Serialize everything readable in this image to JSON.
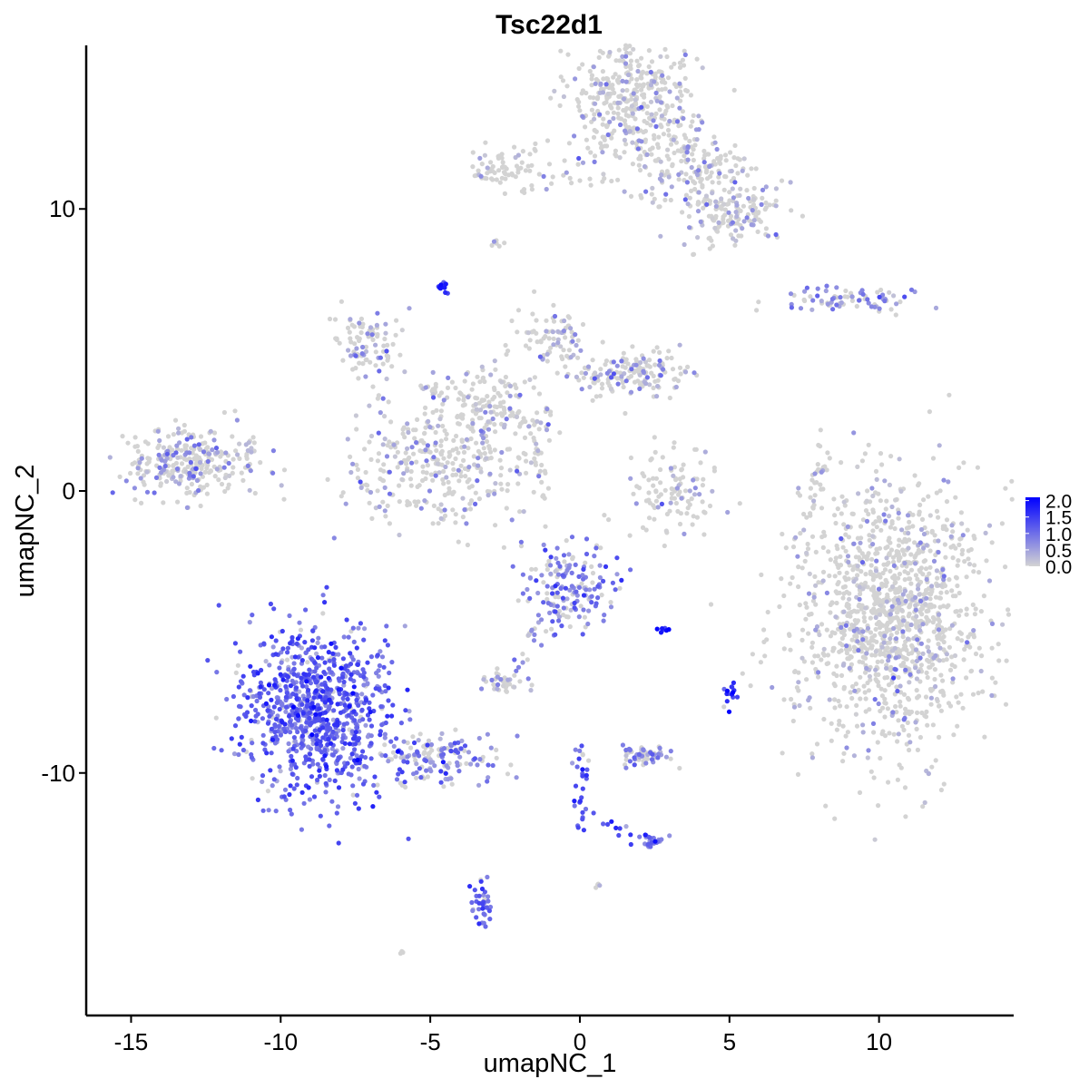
{
  "chart_data": {
    "type": "scatter",
    "title": "Tsc22d1",
    "xlabel": "umapNC_1",
    "ylabel": "umapNC_2",
    "xlim": [
      -16.5,
      14.5
    ],
    "ylim": [
      -18.6,
      15.8
    ],
    "xticks": [
      -15,
      -10,
      -5,
      0,
      5,
      10
    ],
    "yticks": [
      -10,
      0,
      10
    ],
    "xtick_labels": [
      "-15",
      "-10",
      "-5",
      "0",
      "5",
      "10"
    ],
    "ytick_labels": [
      "-10",
      "0",
      "10"
    ],
    "grid": false,
    "legend": {
      "placement": "right",
      "labels": [
        "2.0",
        "1.5",
        "1.0",
        "0.5",
        "0.0"
      ],
      "range": [
        0,
        2.1
      ]
    },
    "colors": {
      "low": "#d3d3d3",
      "high": "#0000ff",
      "axis": "#000000"
    },
    "clusters": [
      {
        "x": 10.4,
        "y": -4.4,
        "sx": 1.6,
        "sy": 2.4,
        "n": 1300,
        "expr": 0.08
      },
      {
        "x": 1.6,
        "y": 13.8,
        "sx": 1.0,
        "sy": 1.2,
        "n": 420,
        "expr": 0.12
      },
      {
        "x": 3.8,
        "y": 11.5,
        "sx": 1.0,
        "sy": 0.6,
        "n": 160,
        "expr": 0.2
      },
      {
        "x": 5.0,
        "y": 9.8,
        "sx": 0.9,
        "sy": 0.6,
        "n": 160,
        "expr": 0.22
      },
      {
        "x": -2.3,
        "y": 11.5,
        "sx": 0.6,
        "sy": 0.35,
        "n": 60,
        "expr": 0.05
      },
      {
        "x": 8.8,
        "y": 6.8,
        "sx": 1.2,
        "sy": 0.2,
        "n": 80,
        "expr": 0.45
      },
      {
        "x": -7.2,
        "y": 5.2,
        "sx": 0.6,
        "sy": 0.6,
        "n": 90,
        "expr": 0.2
      },
      {
        "x": -0.8,
        "y": 5.4,
        "sx": 0.6,
        "sy": 0.6,
        "n": 80,
        "expr": 0.2
      },
      {
        "x": 1.6,
        "y": 4.2,
        "sx": 0.9,
        "sy": 0.4,
        "n": 160,
        "expr": 0.25
      },
      {
        "x": -4.7,
        "y": 1.0,
        "sx": 1.5,
        "sy": 1.3,
        "n": 340,
        "expr": 0.18
      },
      {
        "x": -3.0,
        "y": 3.0,
        "sx": 0.9,
        "sy": 0.7,
        "n": 120,
        "expr": 0.1
      },
      {
        "x": -13.0,
        "y": 1.0,
        "sx": 1.1,
        "sy": 0.6,
        "n": 300,
        "expr": 0.3
      },
      {
        "x": 3.1,
        "y": -0.1,
        "sx": 0.8,
        "sy": 0.8,
        "n": 110,
        "expr": 0.05
      },
      {
        "x": -0.3,
        "y": -3.5,
        "sx": 0.8,
        "sy": 0.8,
        "n": 170,
        "expr": 0.6
      },
      {
        "x": -8.8,
        "y": -7.8,
        "sx": 1.2,
        "sy": 1.5,
        "n": 900,
        "expr": 0.9
      },
      {
        "x": -5.0,
        "y": -9.5,
        "sx": 1.2,
        "sy": 0.5,
        "n": 150,
        "expr": 0.55
      },
      {
        "x": -2.6,
        "y": -6.8,
        "sx": 0.35,
        "sy": 0.2,
        "n": 40,
        "expr": 0.3
      },
      {
        "x": 2.2,
        "y": -9.4,
        "sx": 0.4,
        "sy": 0.2,
        "n": 60,
        "expr": 0.5
      },
      {
        "x": 2.5,
        "y": -12.4,
        "sx": 0.2,
        "sy": 0.1,
        "n": 20,
        "expr": 0.8
      },
      {
        "x": -3.3,
        "y": -14.6,
        "sx": 0.2,
        "sy": 0.5,
        "n": 40,
        "expr": 0.9
      },
      {
        "x": 5.0,
        "y": -7.3,
        "sx": 0.1,
        "sy": 0.2,
        "n": 15,
        "expr": 1.6
      },
      {
        "x": 2.8,
        "y": -4.9,
        "sx": 0.1,
        "sy": 0.05,
        "n": 8,
        "expr": 1.7
      },
      {
        "x": -4.6,
        "y": 7.3,
        "sx": 0.1,
        "sy": 0.12,
        "n": 15,
        "expr": 1.2
      },
      {
        "x": -2.8,
        "y": 8.8,
        "sx": 0.1,
        "sy": 0.08,
        "n": 6,
        "expr": 0.3
      },
      {
        "x": 0.6,
        "y": -14.0,
        "sx": 0.05,
        "sy": 0.05,
        "n": 4,
        "expr": 0.6
      },
      {
        "x": -6.0,
        "y": -16.4,
        "sx": 0.05,
        "sy": 0.05,
        "n": 3,
        "expr": 0.3
      }
    ],
    "paths": [
      {
        "x0": 0.0,
        "y0": -9.0,
        "x1": 0.0,
        "y1": -12.0,
        "n": 30,
        "expr": 1.0
      },
      {
        "x0": 0.8,
        "y0": -11.8,
        "x1": 2.4,
        "y1": -12.4,
        "n": 15,
        "expr": 0.9
      },
      {
        "x0": -1.6,
        "y0": 1.8,
        "x1": -1.1,
        "y1": -0.3,
        "n": 25,
        "expr": 0.1
      },
      {
        "x0": -0.8,
        "y0": -3.5,
        "x1": -2.3,
        "y1": -6.5,
        "n": 25,
        "expr": 0.4
      },
      {
        "x0": 8.2,
        "y0": 1.2,
        "x1": 7.6,
        "y1": -0.8,
        "n": 25,
        "expr": 0.05
      },
      {
        "x0": -3.5,
        "y0": 11.3,
        "x1": 1.0,
        "y1": 11.1,
        "n": 25,
        "expr": 0.05
      },
      {
        "x0": -11.3,
        "y0": 2.8,
        "x1": -11.0,
        "y1": 1.2,
        "n": 10,
        "expr": 0.4
      },
      {
        "x0": -5.5,
        "y0": 3.8,
        "x1": -1.0,
        "y1": 2.2,
        "n": 40,
        "expr": 0.15
      }
    ]
  }
}
